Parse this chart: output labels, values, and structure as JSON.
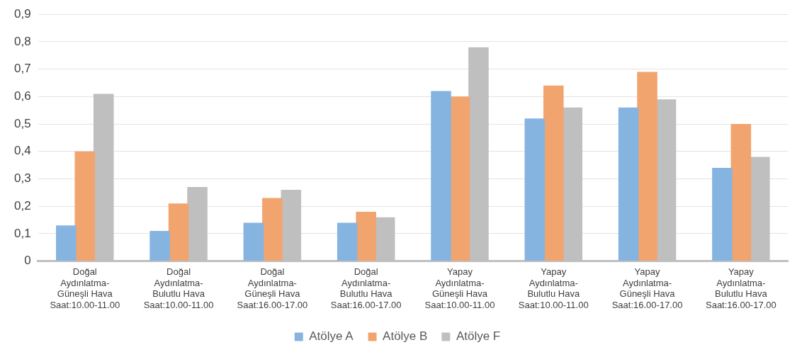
{
  "chart_data": {
    "type": "bar",
    "categories": [
      "Doğal\nAydınlatma-\nGüneşli Hava\nSaat:10.00-11.00",
      "Doğal\nAydınlatma-\nBulutlu Hava\nSaat:10.00-11.00",
      "Doğal\nAydınlatma-\nGüneşli Hava\nSaat:16.00-17.00",
      "Doğal\nAydınlatma-\nBulutlu Hava\nSaat:16.00-17.00",
      "Yapay\nAydınlatma-\nGüneşli Hava\nSaat:10.00-11.00",
      "Yapay\nAydınlatma-\nBulutlu Hava\nSaat:10.00-11.00",
      "Yapay\nAydınlatma-\nGüneşli Hava\nSaat:16.00-17.00",
      "Yapay\nAydınlatma-\nBulutlu Hava\nSaat:16.00-17.00"
    ],
    "series": [
      {
        "name": "Atölye A",
        "color": "#86b4e0",
        "values": [
          0.13,
          0.11,
          0.14,
          0.14,
          0.62,
          0.52,
          0.56,
          0.34
        ]
      },
      {
        "name": "Atölye B",
        "color": "#f2a46f",
        "values": [
          0.4,
          0.21,
          0.23,
          0.18,
          0.6,
          0.64,
          0.69,
          0.5
        ]
      },
      {
        "name": "Atölye F",
        "color": "#bfbfbf",
        "values": [
          0.61,
          0.27,
          0.26,
          0.16,
          0.78,
          0.56,
          0.59,
          0.38
        ]
      }
    ],
    "ylim": [
      0,
      0.9
    ],
    "yticks": [
      0,
      {
        "value": 0.1,
        "label": "0,1"
      },
      {
        "value": 0.2,
        "label": "0,2"
      },
      {
        "value": 0.3,
        "label": "0,3"
      },
      {
        "value": 0.4,
        "label": "0,4"
      },
      {
        "value": 0.5,
        "label": "0,5"
      },
      {
        "value": 0.6,
        "label": "0,6"
      },
      {
        "value": 0.7,
        "label": "0,7"
      },
      {
        "value": 0.8,
        "label": "0,8"
      },
      {
        "value": 0.9,
        "label": "0,9"
      }
    ],
    "grid": "y",
    "legend": "bottom"
  }
}
